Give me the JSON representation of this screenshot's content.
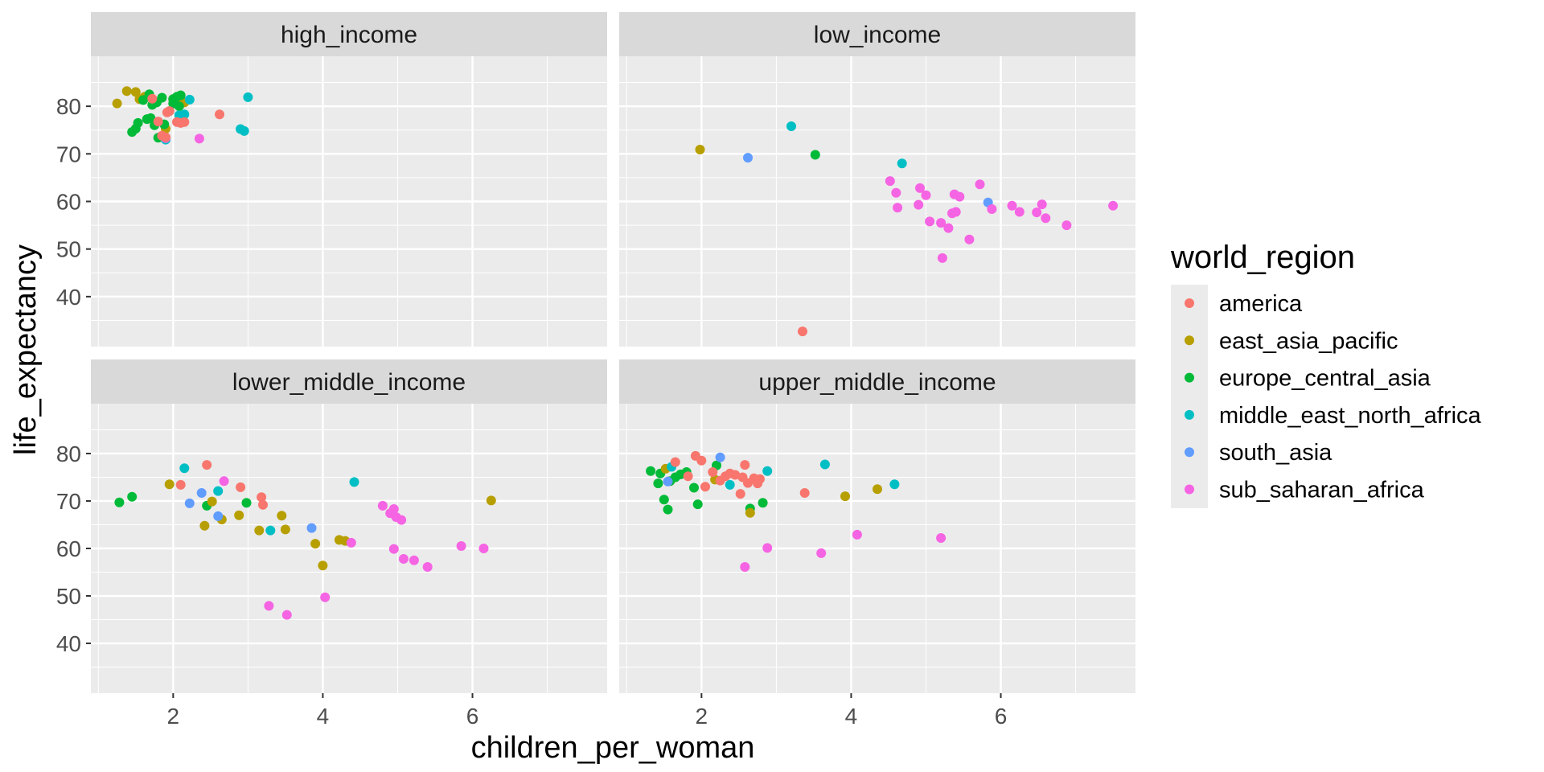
{
  "chart_data": {
    "type": "scatter",
    "facet_by": "income",
    "xlabel": "children_per_woman",
    "ylabel": "life_expectancy",
    "xlim": [
      0.9,
      7.8
    ],
    "ylim": [
      29.5,
      90.5
    ],
    "x_ticks": [
      2,
      4,
      6
    ],
    "y_ticks": [
      40,
      50,
      60,
      70,
      80
    ],
    "grid": true,
    "legend": {
      "title": "world_region",
      "position": "right"
    },
    "series": [
      {
        "name": "america",
        "color": "#F8766D"
      },
      {
        "name": "east_asia_pacific",
        "color": "#B79F00"
      },
      {
        "name": "europe_central_asia",
        "color": "#00BA38"
      },
      {
        "name": "middle_east_north_africa",
        "color": "#00BFC4"
      },
      {
        "name": "south_asia",
        "color": "#619CFF"
      },
      {
        "name": "sub_saharan_africa",
        "color": "#F564E3"
      }
    ],
    "panels": [
      {
        "label": "high_income",
        "points": [
          [
            1.25,
            80.6,
            1
          ],
          [
            1.38,
            83.2,
            1
          ],
          [
            1.5,
            83.0,
            1
          ],
          [
            1.55,
            81.5,
            1
          ],
          [
            1.62,
            82.0,
            1
          ],
          [
            1.9,
            75.3,
            1
          ],
          [
            2.0,
            81.5,
            1
          ],
          [
            2.1,
            81.0,
            1
          ],
          [
            2.15,
            80.8,
            1
          ],
          [
            1.6,
            81.3,
            2
          ],
          [
            1.68,
            82.5,
            2
          ],
          [
            1.72,
            80.3,
            2
          ],
          [
            1.78,
            80.8,
            2
          ],
          [
            1.85,
            81.8,
            2
          ],
          [
            1.95,
            79.0,
            2
          ],
          [
            2.0,
            81.5,
            2
          ],
          [
            2.05,
            82.0,
            2
          ],
          [
            2.1,
            82.3,
            2
          ],
          [
            1.45,
            74.6,
            2
          ],
          [
            1.5,
            75.3,
            2
          ],
          [
            1.53,
            76.5,
            2
          ],
          [
            1.65,
            77.3,
            2
          ],
          [
            1.7,
            77.5,
            2
          ],
          [
            1.75,
            76.0,
            2
          ],
          [
            1.8,
            73.4,
            2
          ],
          [
            1.88,
            76.2,
            2
          ],
          [
            2.0,
            80.6,
            2
          ],
          [
            2.08,
            80.0,
            2
          ],
          [
            2.15,
            78.3,
            3
          ],
          [
            2.22,
            81.4,
            3
          ],
          [
            3.0,
            81.9,
            3
          ],
          [
            2.9,
            75.2,
            3
          ],
          [
            2.95,
            74.8,
            3
          ],
          [
            1.9,
            73.0,
            3
          ],
          [
            2.08,
            78.1,
            3
          ],
          [
            1.9,
            73.3,
            5
          ],
          [
            2.35,
            73.2,
            5
          ],
          [
            1.72,
            81.6,
            0
          ],
          [
            1.8,
            76.8,
            0
          ],
          [
            1.85,
            73.8,
            0
          ],
          [
            1.9,
            73.5,
            0
          ],
          [
            1.92,
            78.7,
            0
          ],
          [
            1.95,
            79.0,
            0
          ],
          [
            2.05,
            76.7,
            0
          ],
          [
            2.1,
            76.5,
            0
          ],
          [
            2.15,
            76.7,
            0
          ],
          [
            2.62,
            78.3,
            0
          ]
        ]
      },
      {
        "label": "low_income",
        "points": [
          [
            1.98,
            70.9,
            1
          ],
          [
            2.62,
            69.2,
            4
          ],
          [
            3.52,
            69.8,
            2
          ],
          [
            3.2,
            75.8,
            3
          ],
          [
            4.68,
            68.0,
            3
          ],
          [
            5.83,
            59.8,
            4
          ],
          [
            3.35,
            32.7,
            0
          ],
          [
            4.52,
            64.3,
            5
          ],
          [
            4.6,
            61.8,
            5
          ],
          [
            4.62,
            58.7,
            5
          ],
          [
            4.9,
            59.3,
            5
          ],
          [
            4.92,
            62.8,
            5
          ],
          [
            5.0,
            61.3,
            5
          ],
          [
            5.05,
            55.8,
            5
          ],
          [
            5.2,
            55.5,
            5
          ],
          [
            5.22,
            48.1,
            5
          ],
          [
            5.3,
            54.4,
            5
          ],
          [
            5.35,
            57.5,
            5
          ],
          [
            5.38,
            61.5,
            5
          ],
          [
            5.4,
            57.8,
            5
          ],
          [
            5.45,
            61.0,
            5
          ],
          [
            5.58,
            52.0,
            5
          ],
          [
            5.72,
            63.6,
            5
          ],
          [
            5.88,
            58.4,
            5
          ],
          [
            6.15,
            59.1,
            5
          ],
          [
            6.25,
            57.8,
            5
          ],
          [
            6.48,
            57.7,
            5
          ],
          [
            6.55,
            59.4,
            5
          ],
          [
            6.6,
            56.5,
            5
          ],
          [
            6.88,
            55.0,
            5
          ],
          [
            7.5,
            59.1,
            5
          ]
        ]
      },
      {
        "label": "lower_middle_income",
        "points": [
          [
            1.28,
            69.7,
            2
          ],
          [
            1.45,
            70.9,
            2
          ],
          [
            2.45,
            69.0,
            2
          ],
          [
            2.98,
            69.6,
            2
          ],
          [
            1.95,
            73.5,
            1
          ],
          [
            2.42,
            64.8,
            1
          ],
          [
            2.52,
            69.9,
            1
          ],
          [
            2.65,
            66.1,
            1
          ],
          [
            2.88,
            67.0,
            1
          ],
          [
            3.15,
            63.8,
            1
          ],
          [
            3.45,
            66.9,
            1
          ],
          [
            3.5,
            64.0,
            1
          ],
          [
            3.9,
            61.0,
            1
          ],
          [
            4.22,
            61.8,
            1
          ],
          [
            4.3,
            61.6,
            1
          ],
          [
            4.0,
            56.4,
            1
          ],
          [
            6.25,
            70.1,
            1
          ],
          [
            2.15,
            76.9,
            3
          ],
          [
            2.6,
            72.1,
            3
          ],
          [
            3.3,
            63.8,
            3
          ],
          [
            4.42,
            74.0,
            3
          ],
          [
            2.22,
            69.5,
            4
          ],
          [
            2.38,
            71.7,
            4
          ],
          [
            2.6,
            66.8,
            4
          ],
          [
            3.85,
            64.3,
            4
          ],
          [
            2.1,
            73.4,
            0
          ],
          [
            2.45,
            77.6,
            0
          ],
          [
            2.9,
            72.9,
            0
          ],
          [
            3.18,
            70.8,
            0
          ],
          [
            3.2,
            69.2,
            0
          ],
          [
            2.68,
            74.2,
            5
          ],
          [
            3.28,
            47.9,
            5
          ],
          [
            3.52,
            46.0,
            5
          ],
          [
            4.03,
            49.7,
            5
          ],
          [
            4.38,
            61.2,
            5
          ],
          [
            4.8,
            69.0,
            5
          ],
          [
            4.9,
            67.4,
            5
          ],
          [
            4.95,
            68.3,
            5
          ],
          [
            4.98,
            66.6,
            5
          ],
          [
            4.95,
            59.9,
            5
          ],
          [
            5.05,
            66.0,
            5
          ],
          [
            5.08,
            57.8,
            5
          ],
          [
            5.22,
            57.5,
            5
          ],
          [
            5.4,
            56.1,
            5
          ],
          [
            5.85,
            60.5,
            5
          ],
          [
            6.15,
            60.0,
            5
          ]
        ]
      },
      {
        "label": "upper_middle_income",
        "points": [
          [
            1.32,
            76.3,
            2
          ],
          [
            1.42,
            73.7,
            2
          ],
          [
            1.45,
            75.8,
            2
          ],
          [
            1.5,
            70.3,
            2
          ],
          [
            1.55,
            68.2,
            2
          ],
          [
            1.58,
            74.2,
            2
          ],
          [
            1.65,
            75.0,
            2
          ],
          [
            1.72,
            75.6,
            2
          ],
          [
            1.8,
            76.1,
            2
          ],
          [
            1.9,
            72.8,
            2
          ],
          [
            1.95,
            69.3,
            2
          ],
          [
            2.2,
            77.5,
            2
          ],
          [
            2.65,
            68.4,
            2
          ],
          [
            2.82,
            69.6,
            2
          ],
          [
            1.52,
            76.8,
            1
          ],
          [
            2.18,
            74.5,
            1
          ],
          [
            2.65,
            67.5,
            1
          ],
          [
            3.92,
            71.0,
            1
          ],
          [
            4.35,
            72.5,
            1
          ],
          [
            1.6,
            77.2,
            3
          ],
          [
            2.38,
            73.4,
            3
          ],
          [
            2.88,
            76.3,
            3
          ],
          [
            3.65,
            77.7,
            3
          ],
          [
            4.58,
            73.5,
            3
          ],
          [
            1.55,
            74.1,
            4
          ],
          [
            2.25,
            79.2,
            4
          ],
          [
            1.65,
            78.2,
            0
          ],
          [
            1.82,
            75.2,
            0
          ],
          [
            1.92,
            79.5,
            0
          ],
          [
            2.0,
            78.5,
            0
          ],
          [
            2.05,
            73.0,
            0
          ],
          [
            2.15,
            76.1,
            0
          ],
          [
            2.25,
            74.3,
            0
          ],
          [
            2.32,
            75.2,
            0
          ],
          [
            2.38,
            75.8,
            0
          ],
          [
            2.45,
            75.5,
            0
          ],
          [
            2.52,
            71.5,
            0
          ],
          [
            2.55,
            75.0,
            0
          ],
          [
            2.58,
            77.6,
            0
          ],
          [
            2.62,
            73.8,
            0
          ],
          [
            2.7,
            74.8,
            0
          ],
          [
            2.75,
            73.7,
            0
          ],
          [
            2.78,
            74.6,
            0
          ],
          [
            3.38,
            71.7,
            0
          ],
          [
            2.58,
            56.1,
            5
          ],
          [
            2.88,
            60.1,
            5
          ],
          [
            3.6,
            59.0,
            5
          ],
          [
            4.08,
            62.9,
            5
          ],
          [
            5.2,
            62.2,
            5
          ]
        ]
      }
    ]
  }
}
